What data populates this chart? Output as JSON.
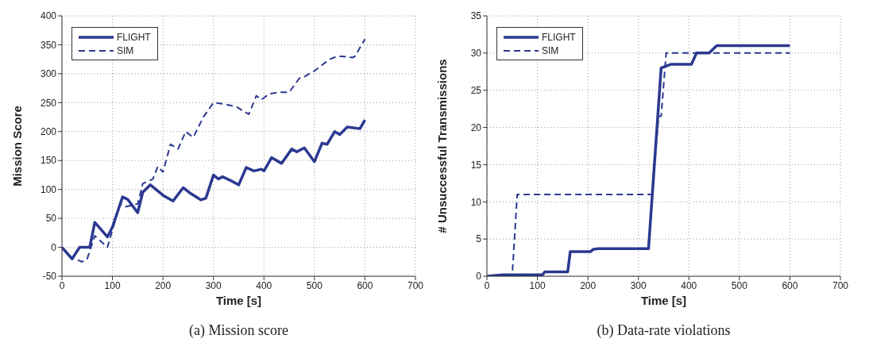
{
  "chart_data": [
    {
      "type": "line",
      "xlabel": "Time [s]",
      "ylabel": "Mission Score",
      "xlim": [
        0,
        700
      ],
      "xticks": [
        0,
        100,
        200,
        300,
        400,
        500,
        600,
        700
      ],
      "ylim": [
        -50,
        400
      ],
      "yticks": [
        -50,
        0,
        50,
        100,
        150,
        200,
        250,
        300,
        350,
        400
      ],
      "grid": true,
      "legend": "top left",
      "annotations": [
        "(a)  Mission score"
      ],
      "series": [
        {
          "name": "FLIGHT",
          "color": "#2b3990",
          "line_style": "solid",
          "x": [
            0,
            10,
            20,
            35,
            55,
            65,
            90,
            100,
            120,
            130,
            150,
            160,
            175,
            200,
            220,
            240,
            255,
            275,
            285,
            300,
            310,
            318,
            335,
            350,
            365,
            380,
            395,
            400,
            415,
            435,
            455,
            465,
            480,
            500,
            515,
            525,
            540,
            550,
            565,
            590,
            600
          ],
          "values": [
            0,
            -10,
            -20,
            0,
            0,
            43,
            18,
            35,
            87,
            83,
            60,
            95,
            108,
            90,
            80,
            103,
            93,
            82,
            85,
            125,
            118,
            122,
            115,
            108,
            138,
            132,
            135,
            132,
            155,
            145,
            170,
            165,
            172,
            148,
            180,
            178,
            200,
            195,
            208,
            205,
            220
          ]
        },
        {
          "name": "SIM",
          "color": "#2b3990",
          "line_style": "dashed",
          "x": [
            0,
            20,
            40,
            50,
            65,
            90,
            100,
            115,
            125,
            150,
            160,
            180,
            190,
            200,
            215,
            230,
            245,
            260,
            280,
            300,
            320,
            345,
            370,
            385,
            395,
            410,
            430,
            450,
            470,
            480,
            500,
            530,
            545,
            555,
            575,
            580,
            600
          ],
          "values": [
            0,
            -18,
            -25,
            -20,
            20,
            0,
            30,
            75,
            70,
            75,
            110,
            118,
            140,
            130,
            178,
            170,
            200,
            190,
            225,
            250,
            248,
            243,
            230,
            262,
            255,
            265,
            268,
            268,
            292,
            295,
            305,
            325,
            330,
            330,
            328,
            330,
            360
          ]
        }
      ]
    },
    {
      "type": "line",
      "xlabel": "Time [s]",
      "ylabel": "# Unsuccessful Transmissions",
      "xlim": [
        0,
        700
      ],
      "xticks": [
        0,
        100,
        200,
        300,
        400,
        500,
        600,
        700
      ],
      "ylim": [
        0,
        35
      ],
      "yticks": [
        0,
        5,
        10,
        15,
        20,
        25,
        30,
        35
      ],
      "grid": true,
      "legend": "top left",
      "annotations": [
        "(b)  Data-rate violations"
      ],
      "series": [
        {
          "name": "FLIGHT",
          "color": "#2b3990",
          "line_style": "solid",
          "x": [
            0,
            30,
            110,
            115,
            160,
            165,
            205,
            210,
            220,
            320,
            345,
            365,
            370,
            405,
            415,
            440,
            455,
            600
          ],
          "values": [
            0,
            0.2,
            0.2,
            0.6,
            0.6,
            3.3,
            3.3,
            3.6,
            3.7,
            3.7,
            28,
            28.5,
            28.5,
            28.5,
            30,
            30,
            31,
            31
          ]
        },
        {
          "name": "SIM",
          "color": "#2b3990",
          "line_style": "dashed",
          "x": [
            0,
            50,
            60,
            327,
            340,
            345,
            355,
            600
          ],
          "values": [
            0,
            0,
            11,
            11,
            21.5,
            21.5,
            30,
            30
          ]
        }
      ]
    }
  ]
}
